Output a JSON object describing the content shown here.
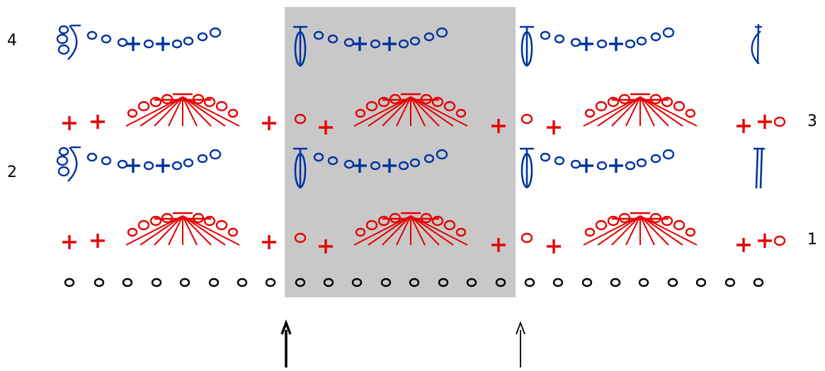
{
  "row_labels": [
    "4",
    "3",
    "2",
    "1"
  ],
  "colors": {
    "foundation": "#000000",
    "odd_rows": "#e60000",
    "even_rows": "#0033a0",
    "repeat_band": "#c8c8c8",
    "arrows": "#000000"
  }
}
